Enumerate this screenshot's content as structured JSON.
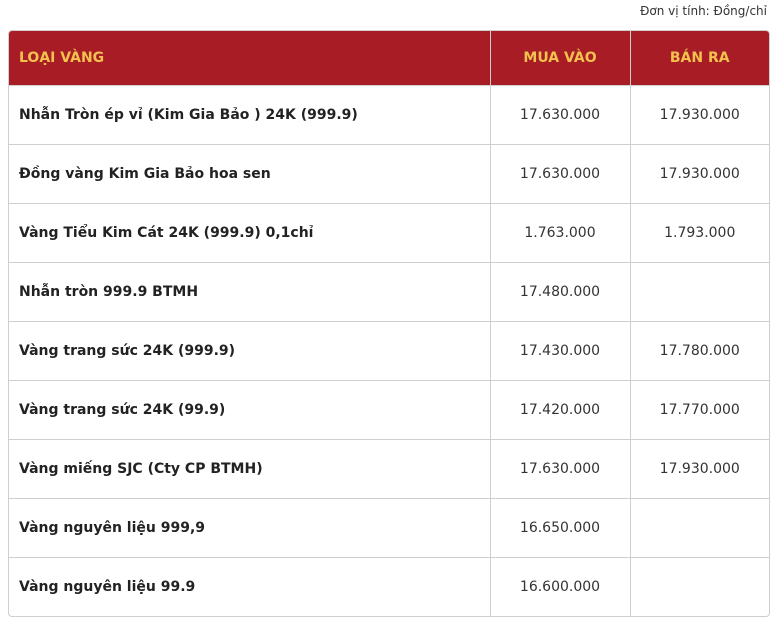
{
  "unit_note": "Đơn vị tính: Đồng/chỉ",
  "table": {
    "header": [
      "LOẠI VÀNG",
      "MUA VÀO",
      "BÁN RA"
    ],
    "rows": [
      [
        "Nhẫn Tròn ép vỉ (Kim Gia Bảo ) 24K (999.9)",
        "17.630.000",
        "17.930.000"
      ],
      [
        "Đồng vàng Kim Gia Bảo hoa sen",
        "17.630.000",
        "17.930.000"
      ],
      [
        "Vàng Tiểu Kim Cát 24K (999.9) 0,1chỉ",
        "1.763.000",
        "1.793.000"
      ],
      [
        "Nhẫn tròn 999.9 BTMH",
        "17.480.000",
        null
      ],
      [
        "Vàng trang sức 24K (999.9)",
        "17.430.000",
        "17.780.000"
      ],
      [
        "Vàng trang sức 24K (99.9)",
        "17.420.000",
        "17.770.000"
      ],
      [
        "Vàng miếng SJC (Cty CP BTMH)",
        "17.630.000",
        "17.930.000"
      ],
      [
        "Vàng nguyên liệu 999,9",
        "16.650.000",
        null
      ],
      [
        "Vàng nguyên liệu 99.9",
        "16.600.000",
        null
      ]
    ]
  }
}
